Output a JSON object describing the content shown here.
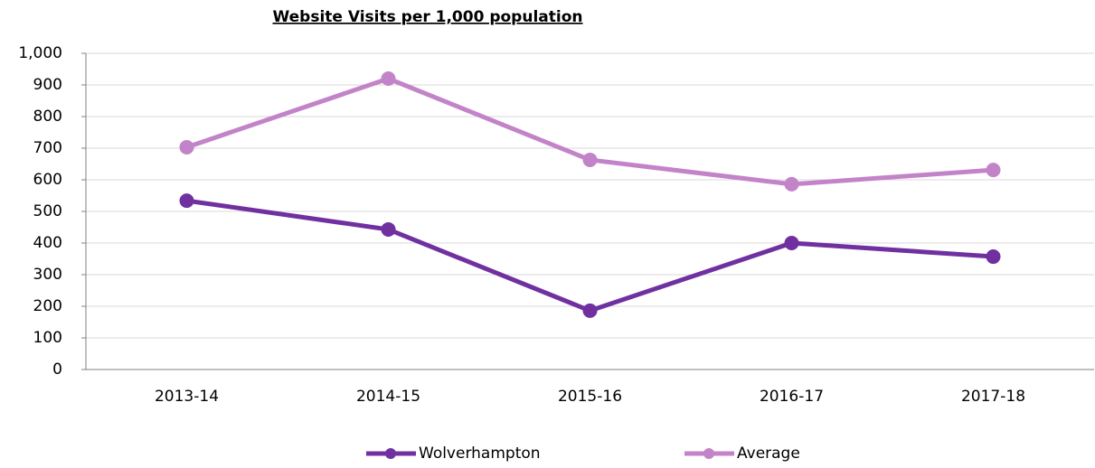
{
  "chart_data": {
    "type": "line",
    "title": "Website Visits per 1,000 population",
    "categories": [
      "2013-14",
      "2014-15",
      "2015-16",
      "2016-17",
      "2017-18"
    ],
    "series": [
      {
        "name": "Wolverhampton",
        "color": "#7030a0",
        "values": [
          534,
          443,
          186,
          400,
          357
        ]
      },
      {
        "name": "Average",
        "color": "#c383c8",
        "values": [
          703,
          920,
          663,
          586,
          631
        ]
      }
    ],
    "ylim": [
      0,
      1000
    ],
    "yticks": [
      0,
      100,
      200,
      300,
      400,
      500,
      600,
      700,
      800,
      900,
      {
        "value": 1000,
        "label": "1,000"
      }
    ],
    "grid": true,
    "legend": "bottom"
  }
}
